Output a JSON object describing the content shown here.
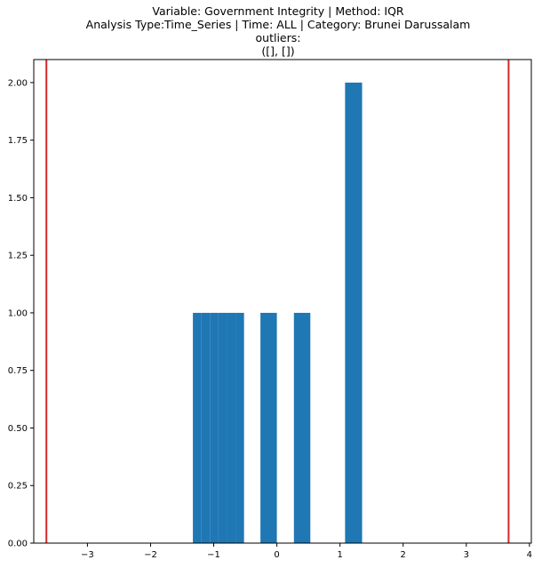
{
  "chart_data": {
    "type": "bar",
    "title_lines": [
      "Variable: Government Integrity | Method: IQR",
      "Analysis Type:Time_Series | Time: ALL | Category: Brunei Darussalam",
      "outliers:",
      "([], [])"
    ],
    "xlabel": "",
    "ylabel": "",
    "xlim": [
      -3.85,
      4.03
    ],
    "ylim": [
      0,
      2.1
    ],
    "x_ticks": [
      {
        "value": -3,
        "label": "−3"
      },
      {
        "value": -2,
        "label": "−2"
      },
      {
        "value": -1,
        "label": "−1"
      },
      {
        "value": 0,
        "label": "0"
      },
      {
        "value": 1,
        "label": "1"
      },
      {
        "value": 2,
        "label": "2"
      },
      {
        "value": 3,
        "label": "3"
      },
      {
        "value": 4,
        "label": "4"
      }
    ],
    "y_ticks": [
      {
        "value": 0,
        "label": "0.00"
      },
      {
        "value": 0.25,
        "label": "0.25"
      },
      {
        "value": 0.5,
        "label": "0.50"
      },
      {
        "value": 0.75,
        "label": "0.75"
      },
      {
        "value": 1.0,
        "label": "1.00"
      },
      {
        "value": 1.25,
        "label": "1.25"
      },
      {
        "value": 1.5,
        "label": "1.50"
      },
      {
        "value": 1.75,
        "label": "1.75"
      },
      {
        "value": 2.0,
        "label": "2.00"
      }
    ],
    "bars": [
      {
        "x0": -1.33,
        "x1": -1.195,
        "height": 1
      },
      {
        "x0": -1.195,
        "x1": -1.06,
        "height": 1
      },
      {
        "x0": -1.06,
        "x1": -0.925,
        "height": 1
      },
      {
        "x0": -0.925,
        "x1": -0.79,
        "height": 1
      },
      {
        "x0": -0.79,
        "x1": -0.655,
        "height": 1
      },
      {
        "x0": -0.655,
        "x1": -0.52,
        "height": 1
      },
      {
        "x0": -0.26,
        "x1": 0.0,
        "height": 1
      },
      {
        "x0": 0.27,
        "x1": 0.53,
        "height": 1
      },
      {
        "x0": 1.08,
        "x1": 1.35,
        "height": 2
      }
    ],
    "threshold_lines": [
      -3.65,
      3.67
    ],
    "grid": false,
    "colors": {
      "bar": "#1f77b4",
      "threshold": "#d62728",
      "axis": "#000000"
    }
  }
}
